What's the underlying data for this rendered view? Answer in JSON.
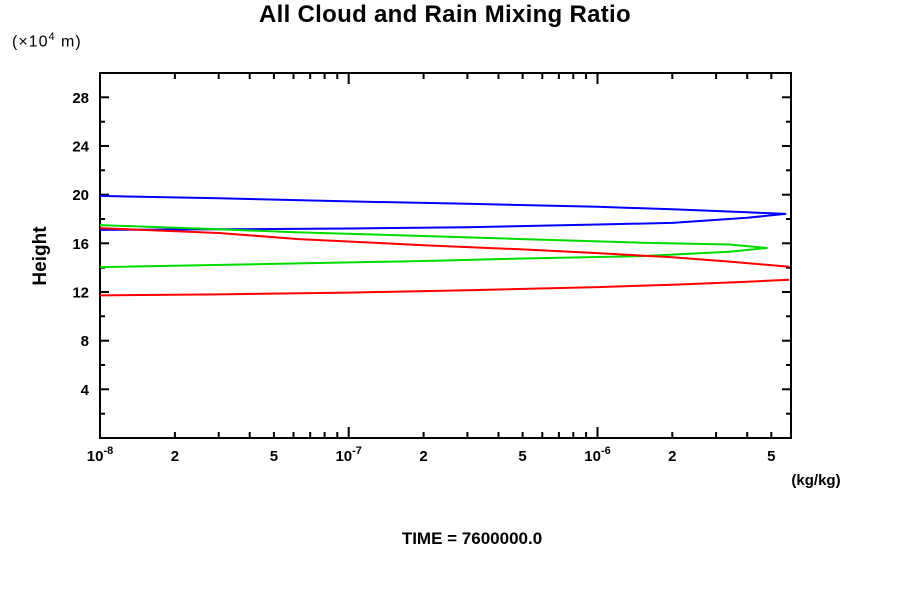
{
  "chart_data": {
    "type": "line",
    "title": "All Cloud and Rain Mixing Ratio",
    "xlabel": "(kg/kg)",
    "ylabel": "Height",
    "y_unit": {
      "prefix": "(×10",
      "exp": "4",
      "suffix": " m)"
    },
    "time_label": "TIME = 7600000.0",
    "x_scale": "log",
    "xlim": [
      1e-08,
      6e-06
    ],
    "ylim": [
      0,
      30
    ],
    "grid": false,
    "legend": "none",
    "y_major_ticks": [
      4,
      8,
      12,
      16,
      20,
      24,
      28
    ],
    "y_minor_ticks": [
      2,
      6,
      10,
      14,
      18,
      22,
      26
    ],
    "x_ticks": [
      {
        "value": 1e-08,
        "base": "10",
        "exp": "-8"
      },
      {
        "value": 2e-08,
        "base": "2"
      },
      {
        "value": 5e-08,
        "base": "5"
      },
      {
        "value": 1e-07,
        "base": "10",
        "exp": "-7"
      },
      {
        "value": 2e-07,
        "base": "2"
      },
      {
        "value": 5e-07,
        "base": "5"
      },
      {
        "value": 1e-06,
        "base": "10",
        "exp": "-6"
      },
      {
        "value": 2e-06,
        "base": "2"
      },
      {
        "value": 5e-06,
        "base": "5"
      }
    ],
    "series": [
      {
        "name": "blue",
        "color": "#0000ff",
        "paths": [
          [
            [
              1e-08,
              19.9
            ],
            [
              3e-08,
              19.7
            ],
            [
              1e-07,
              19.45
            ],
            [
              3e-07,
              19.25
            ],
            [
              1e-06,
              19.0
            ],
            [
              2e-06,
              18.8
            ],
            [
              4e-06,
              18.55
            ],
            [
              5.7e-06,
              18.42
            ],
            [
              4e-06,
              18.1
            ],
            [
              2e-06,
              17.68
            ],
            [
              1e-06,
              17.55
            ],
            [
              3e-07,
              17.32
            ],
            [
              1e-07,
              17.22
            ],
            [
              3e-08,
              17.15
            ],
            [
              1e-08,
              17.1
            ]
          ]
        ]
      },
      {
        "name": "green",
        "color": "#00dc00",
        "paths": [
          [
            [
              1e-08,
              17.5
            ],
            [
              3e-08,
              17.15
            ],
            [
              6.3e-08,
              16.9
            ],
            [
              2e-07,
              16.6
            ],
            [
              5e-07,
              16.35
            ],
            [
              1.5e-06,
              16.05
            ],
            [
              3.4e-06,
              15.9
            ],
            [
              4.8e-06,
              15.62
            ],
            [
              3.4e-06,
              15.3
            ],
            [
              1.5e-06,
              14.95
            ],
            [
              5e-07,
              14.75
            ],
            [
              2e-07,
              14.55
            ],
            [
              6.3e-08,
              14.35
            ],
            [
              1e-08,
              14.05
            ]
          ]
        ]
      },
      {
        "name": "red",
        "color": "#ff0000",
        "paths": [
          [
            [
              1e-08,
              17.25
            ],
            [
              3e-08,
              16.85
            ],
            [
              6.3e-08,
              16.35
            ],
            [
              2e-07,
              15.85
            ],
            [
              5e-07,
              15.5
            ],
            [
              1e-06,
              15.2
            ],
            [
              2e-06,
              14.85
            ],
            [
              3.4e-06,
              14.5
            ],
            [
              5.9e-06,
              14.08
            ]
          ],
          [
            [
              1e-08,
              11.72
            ],
            [
              3e-08,
              11.8
            ],
            [
              1e-07,
              11.95
            ],
            [
              3e-07,
              12.15
            ],
            [
              1e-06,
              12.4
            ],
            [
              2e-06,
              12.6
            ],
            [
              4e-06,
              12.85
            ],
            [
              5.9e-06,
              13.0
            ]
          ]
        ]
      }
    ]
  }
}
